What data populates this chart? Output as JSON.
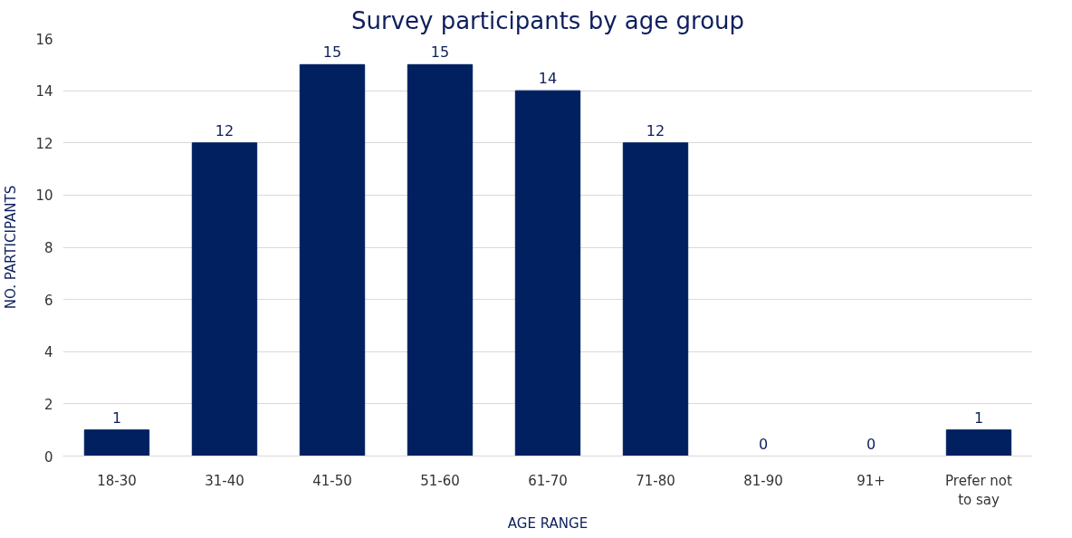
{
  "chart_data": {
    "type": "bar",
    "title": "Survey participants by age group",
    "xlabel": "AGE RANGE",
    "ylabel": "NO. PARTICIPANTS",
    "categories": [
      "18-30",
      "31-40",
      "41-50",
      "51-60",
      "61-70",
      "71-80",
      "81-90",
      "91+",
      "Prefer not to say"
    ],
    "values": [
      1,
      12,
      15,
      15,
      14,
      12,
      0,
      0,
      1
    ],
    "color": "#002060",
    "ylim": [
      0,
      16
    ],
    "yticks": [
      0,
      2,
      4,
      6,
      8,
      10,
      12,
      14,
      16
    ],
    "grid": "y",
    "data_labels": true
  }
}
